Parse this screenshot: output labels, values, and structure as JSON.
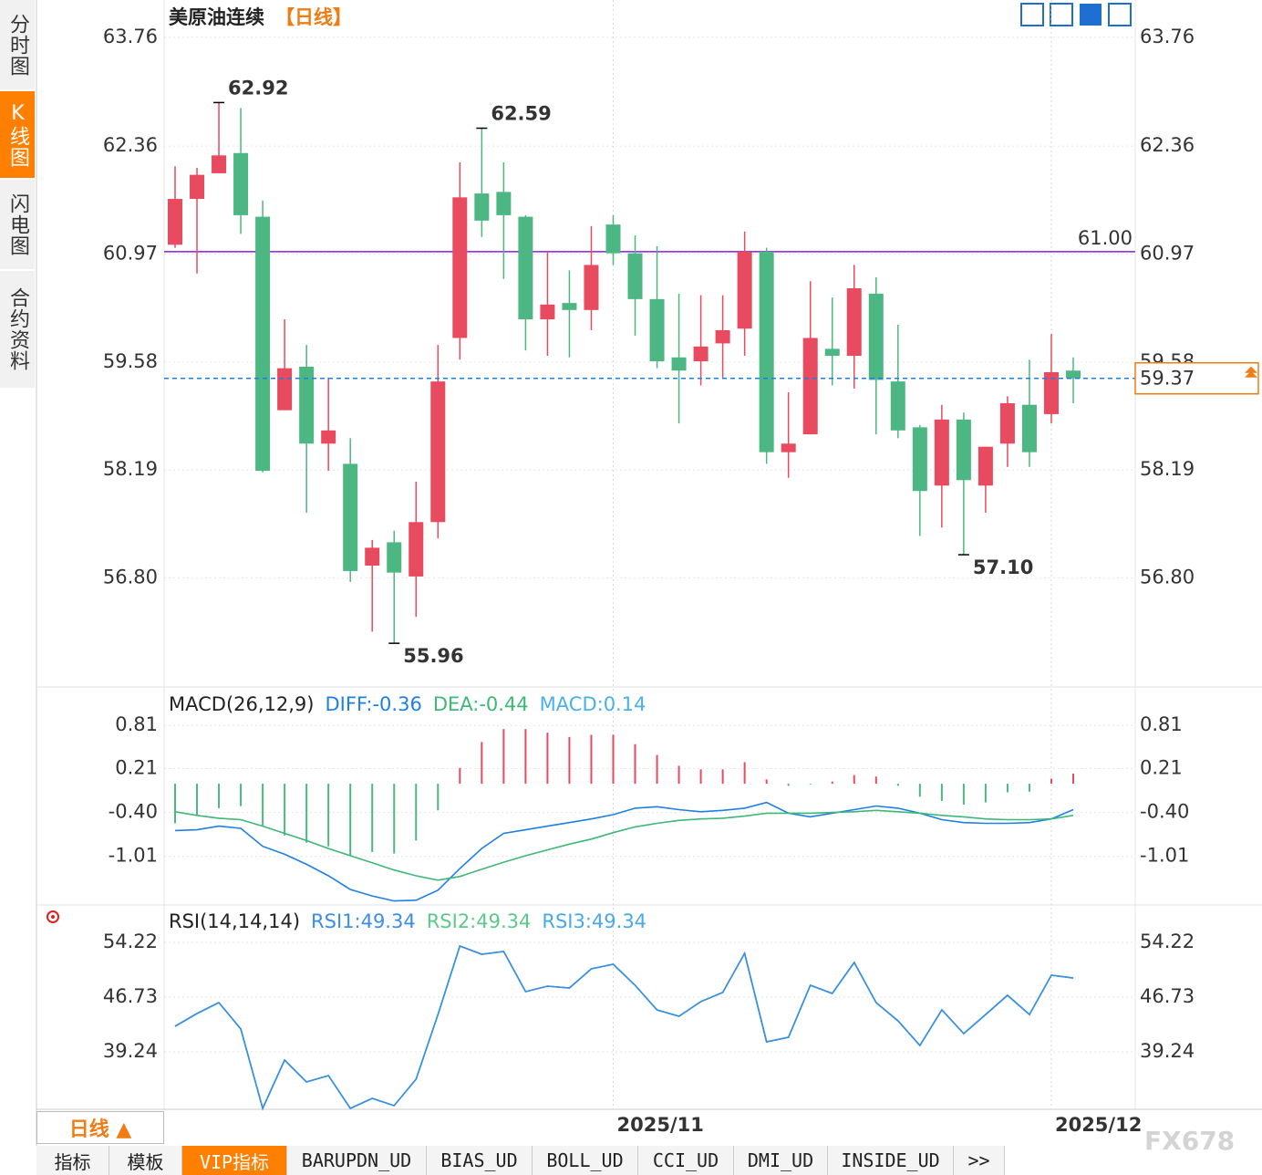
{
  "sidebar": {
    "tabs": [
      "分时图",
      "K线图",
      "闪电图",
      "合约资料"
    ],
    "active": 1
  },
  "period_button": "日线 ▲",
  "bottom_tabs": {
    "tabs": [
      "指标",
      "模板",
      "VIP指标",
      "BARUPDN_UD",
      "BIAS_UD",
      "BOLL_UD",
      "CCI_UD",
      "DMI_UD",
      "INSIDE_UD",
      ">>"
    ],
    "active": 2
  },
  "watermark": "FX678",
  "chart_data": [
    {
      "type": "candlestick",
      "title": "美原油连续",
      "subtitle": "【日线】",
      "up_color": "#e84a5f",
      "down_color": "#4cb782",
      "open": [
        61.09,
        61.68,
        62.01,
        62.27,
        61.45,
        58.96,
        59.52,
        58.53,
        58.27,
        56.96,
        57.26,
        56.82,
        57.52,
        59.89,
        61.75,
        61.77,
        61.45,
        60.13,
        60.34,
        60.25,
        61.35,
        60.98,
        60.39,
        59.64,
        59.59,
        59.82,
        60.01,
        61,
        58.42,
        58.65,
        59.75,
        59.66,
        60.46,
        59.33,
        58.74,
        57.99,
        58.84,
        57.99,
        58.53,
        59.03,
        58.91,
        59.47
      ],
      "high": [
        62.1,
        62.08,
        62.92,
        62.85,
        61.66,
        60.13,
        59.8,
        59.38,
        58.6,
        57.29,
        57.41,
        58.04,
        59.8,
        62.15,
        62.59,
        62.15,
        61.47,
        61,
        60.76,
        61.33,
        61.47,
        61.21,
        61.07,
        60.46,
        60.44,
        60.44,
        61.26,
        61.05,
        59.19,
        60.62,
        60.41,
        60.83,
        60.67,
        60.06,
        58.77,
        59.03,
        58.93,
        58.49,
        59.14,
        59.61,
        59.94,
        59.64
      ],
      "low": [
        61.05,
        60.72,
        62.01,
        61.23,
        58.16,
        58.96,
        57.64,
        58.18,
        56.75,
        56.11,
        55.96,
        56.3,
        57.31,
        59.61,
        61.19,
        60.65,
        59.73,
        59.66,
        59.64,
        59.99,
        60.83,
        59.92,
        59.5,
        58.79,
        59.28,
        59.38,
        59.66,
        58.27,
        58.09,
        58.65,
        59.28,
        59.24,
        58.65,
        58.6,
        57.34,
        57.45,
        57.1,
        57.64,
        58.23,
        58.23,
        58.79,
        59.05
      ],
      "close": [
        61.68,
        61.99,
        62.24,
        61.47,
        58.18,
        59.5,
        58.53,
        58.7,
        56.89,
        57.19,
        56.87,
        57.52,
        59.33,
        61.7,
        61.4,
        61.47,
        60.13,
        60.32,
        60.25,
        60.83,
        60.98,
        60.39,
        59.59,
        59.47,
        59.78,
        59.99,
        61,
        58.42,
        58.53,
        59.89,
        59.66,
        60.53,
        59.35,
        58.7,
        57.92,
        58.84,
        58.06,
        58.49,
        59.05,
        58.42,
        59.45,
        59.37
      ],
      "ylim": [
        55.41,
        64.24
      ],
      "yticks": [
        63.76,
        62.36,
        60.97,
        59.58,
        58.19,
        {
          "value": 56.8,
          "label": "56.80"
        }
      ],
      "hlines": [
        {
          "value": 61,
          "label": "61.00",
          "color": "#8b1fd6"
        }
      ],
      "last_price": {
        "value": 59.37,
        "color": "#1e7fe6",
        "label_color": "#f07c14"
      },
      "annotations": [
        62.92,
        62.59,
        55.96,
        {
          "value": 57.1,
          "label": "57.10"
        }
      ],
      "grid": true
    },
    {
      "type": "macd",
      "title": "MACD(26,12,9)",
      "ylim": [
        -1.66,
        1.32
      ],
      "yticks": [
        0.81,
        0.21,
        {
          "value": -0.4,
          "label": "-0.40"
        },
        -1.01
      ],
      "histogram": {
        "name": "MACD:0.14",
        "color": "#4ab0e8",
        "up_color": "#e84a5f",
        "down_color": "#4cb782",
        "values": [
          -0.55,
          -0.43,
          -0.34,
          -0.31,
          -0.58,
          -0.72,
          -0.82,
          -0.87,
          -1,
          -0.95,
          -0.97,
          -0.79,
          -0.37,
          0.22,
          0.58,
          0.76,
          0.76,
          0.71,
          0.65,
          0.68,
          0.68,
          0.55,
          0.4,
          0.25,
          0.2,
          0.2,
          0.3,
          0.06,
          -0.03,
          -0.01,
          0.03,
          0.12,
          0.1,
          -0.03,
          -0.18,
          -0.24,
          -0.29,
          -0.26,
          -0.12,
          -0.11,
          0.07,
          0.14
        ]
      },
      "series": [
        {
          "name": "DIFF:-0.36",
          "color": "#1e7fe6",
          "values": [
            -0.65,
            -0.64,
            -0.59,
            -0.62,
            -0.87,
            -0.98,
            -1.12,
            -1.28,
            -1.47,
            -1.56,
            -1.63,
            -1.62,
            -1.48,
            -1.18,
            -0.9,
            -0.69,
            -0.64,
            -0.59,
            -0.54,
            -0.49,
            -0.43,
            -0.34,
            -0.32,
            -0.36,
            -0.39,
            -0.37,
            -0.34,
            -0.26,
            -0.41,
            -0.46,
            -0.41,
            -0.36,
            -0.31,
            -0.34,
            -0.41,
            -0.5,
            -0.54,
            -0.55,
            -0.55,
            -0.54,
            -0.49,
            -0.36
          ]
        },
        {
          "name": "DEA:-0.44",
          "color": "#3cb878",
          "values": [
            -0.39,
            -0.44,
            -0.48,
            -0.5,
            -0.59,
            -0.69,
            -0.79,
            -0.9,
            -1,
            -1.1,
            -1.2,
            -1.28,
            -1.34,
            -1.29,
            -1.19,
            -1.09,
            -1,
            -0.92,
            -0.84,
            -0.77,
            -0.68,
            -0.6,
            -0.55,
            -0.51,
            -0.49,
            -0.48,
            -0.45,
            -0.41,
            -0.41,
            -0.41,
            -0.4,
            -0.39,
            -0.37,
            -0.39,
            -0.41,
            -0.44,
            -0.46,
            -0.49,
            -0.5,
            -0.5,
            -0.49,
            -0.44
          ]
        }
      ],
      "grid": true
    },
    {
      "type": "line",
      "title": "RSI(14,14,14)",
      "ylim": [
        31.5,
        58.96
      ],
      "yticks": [
        54.22,
        46.73,
        39.24
      ],
      "categories": [
        null,
        null,
        null,
        null,
        null,
        null,
        null,
        null,
        null,
        null,
        null,
        null,
        null,
        null,
        null,
        null,
        null,
        null,
        null,
        null,
        "2025/11",
        null,
        null,
        null,
        null,
        null,
        null,
        null,
        null,
        null,
        null,
        null,
        null,
        null,
        null,
        null,
        null,
        null,
        null,
        null,
        "2025/12",
        null
      ],
      "series": [
        {
          "name": "RSI1:49.34",
          "color": "#3b8ee6",
          "values": [
            42.73,
            44.48,
            45.98,
            42.36,
            31.5,
            38.12,
            35.12,
            35.99,
            31.5,
            32.87,
            31.87,
            35.49,
            44.35,
            53.72,
            52.6,
            52.97,
            47.48,
            48.23,
            47.98,
            50.6,
            51.22,
            48.35,
            44.98,
            44.11,
            46.11,
            47.36,
            52.72,
            40.61,
            41.23,
            48.35,
            47.23,
            51.47,
            45.98,
            43.48,
            40.11,
            44.98,
            41.73,
            44.35,
            46.98,
            44.35,
            49.72,
            49.34
          ]
        },
        {
          "name": "RSI2:49.34",
          "color": "#5cc98a",
          "values": [
            42.73,
            44.48,
            45.98,
            42.36,
            31.5,
            38.12,
            35.12,
            35.99,
            31.5,
            32.87,
            31.87,
            35.49,
            44.35,
            53.72,
            52.6,
            52.97,
            47.48,
            48.23,
            47.98,
            50.6,
            51.22,
            48.35,
            44.98,
            44.11,
            46.11,
            47.36,
            52.72,
            40.61,
            41.23,
            48.35,
            47.23,
            51.47,
            45.98,
            43.48,
            40.11,
            44.98,
            41.73,
            44.35,
            46.98,
            44.35,
            49.72,
            49.34
          ]
        },
        {
          "name": "RSI3:49.34",
          "color": "#4aa8e8",
          "values": [
            42.73,
            44.48,
            45.98,
            42.36,
            31.5,
            38.12,
            35.12,
            35.99,
            31.5,
            32.87,
            31.87,
            35.49,
            44.35,
            53.72,
            52.6,
            52.97,
            47.48,
            48.23,
            47.98,
            50.6,
            51.22,
            48.35,
            44.98,
            44.11,
            46.11,
            47.36,
            52.72,
            40.61,
            41.23,
            48.35,
            47.23,
            51.47,
            45.98,
            43.48,
            40.11,
            44.98,
            41.73,
            44.35,
            46.98,
            44.35,
            49.72,
            49.34
          ]
        }
      ],
      "grid": true
    }
  ]
}
